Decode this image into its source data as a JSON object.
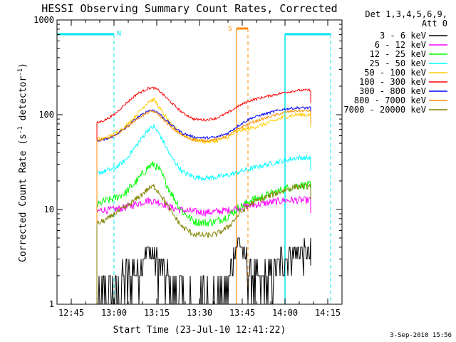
{
  "chart_data": {
    "type": "line",
    "title": "HESSI Observing Summary Count Rates, Corrected",
    "xlabel": "Start Time (23-Jul-10 12:41:22)",
    "ylabel_prefix": "Corrected Count Rate (s",
    "ylabel_mid": " detector",
    "ylabel_suffix": ")",
    "ylabel_exp": "-1",
    "yscale": "log",
    "xlim": [
      "12:40",
      "14:20"
    ],
    "ylim": [
      1,
      1000
    ],
    "x_ticks": [
      "12:45",
      "13:00",
      "13:15",
      "13:30",
      "13:45",
      "14:00",
      "14:15"
    ],
    "y_tick_labels": [
      "1",
      "10",
      "100",
      "1000"
    ],
    "legend_header": [
      "Det 1,3,4,5,6,9,",
      "Att 0"
    ],
    "legend_position": "right",
    "timestamp": "3-Sep-2010 15:56",
    "annotations": {
      "night_label": "N",
      "saa_label": "S",
      "night_intervals": [
        [
          "12:40",
          "13:00"
        ],
        [
          "14:00",
          "14:16"
        ]
      ],
      "saa_interval": [
        "13:43",
        "13:47"
      ],
      "night_color": "#00e5ee",
      "saa_color": "#ff8c00"
    },
    "data_start": "12:54",
    "data_end": "14:09",
    "series": [
      {
        "name": "3 - 6 keV",
        "color": "#000000",
        "x": [
          "12:54",
          "12:58",
          "13:00",
          "13:04",
          "13:08",
          "13:12",
          "13:16",
          "13:20",
          "13:24",
          "13:30",
          "13:36",
          "13:40",
          "13:42",
          "13:44",
          "13:46",
          "13:48",
          "13:52",
          "13:56",
          "14:00",
          "14:04",
          "14:08"
        ],
        "y": [
          1,
          1,
          1,
          1.8,
          2.3,
          3.8,
          2.3,
          1.5,
          1,
          1,
          1,
          1.5,
          3.5,
          4.5,
          3,
          2,
          1.5,
          2.2,
          3.2,
          3.5,
          3.5
        ]
      },
      {
        "name": "6 - 12 keV",
        "color": "#ff00ff",
        "x": [
          "12:54",
          "12:56",
          "12:58",
          "13:00",
          "13:04",
          "13:08",
          "13:12",
          "13:16",
          "13:20",
          "13:24",
          "13:28",
          "13:32",
          "13:36",
          "13:40",
          "13:44",
          "13:48",
          "13:52",
          "13:56",
          "14:00",
          "14:04",
          "14:08"
        ],
        "y": [
          9.5,
          10,
          9.8,
          10,
          10.5,
          11.5,
          12.5,
          12,
          10.5,
          9.8,
          9.5,
          9.3,
          9.5,
          9.8,
          10.5,
          11,
          11.5,
          12,
          12.5,
          12.5,
          12.5
        ]
      },
      {
        "name": "12 - 25 keV",
        "color": "#00ff00",
        "x": [
          "12:54",
          "12:56",
          "12:58",
          "13:00",
          "13:04",
          "13:08",
          "13:12",
          "13:14",
          "13:16",
          "13:20",
          "13:24",
          "13:28",
          "13:32",
          "13:36",
          "13:40",
          "13:44",
          "13:48",
          "13:52",
          "13:56",
          "14:00",
          "14:04",
          "14:08"
        ],
        "y": [
          11,
          12,
          12.5,
          13,
          15,
          20,
          28,
          30,
          26,
          15,
          9.5,
          7.5,
          7.2,
          7.5,
          8.5,
          10.5,
          12.5,
          13.5,
          15,
          16.5,
          18,
          18
        ]
      },
      {
        "name": "25 - 50 keV",
        "color": "#00ffff",
        "x": [
          "12:54",
          "12:56",
          "12:58",
          "13:00",
          "13:04",
          "13:08",
          "13:12",
          "13:14",
          "13:16",
          "13:20",
          "13:24",
          "13:28",
          "13:32",
          "13:36",
          "13:40",
          "13:44",
          "13:48",
          "13:52",
          "13:56",
          "14:00",
          "14:04",
          "14:08"
        ],
        "y": [
          24,
          25,
          26,
          27,
          33,
          48,
          70,
          75,
          62,
          36,
          25,
          22,
          21.5,
          22,
          23,
          25,
          27,
          29,
          31,
          33,
          35,
          35
        ]
      },
      {
        "name": "50 - 100 keV",
        "color": "#ffcc00",
        "x": [
          "12:54",
          "12:56",
          "12:58",
          "13:00",
          "13:04",
          "13:08",
          "13:12",
          "13:14",
          "13:16",
          "13:20",
          "13:24",
          "13:28",
          "13:32",
          "13:36",
          "13:40",
          "13:44",
          "13:48",
          "13:52",
          "13:56",
          "14:00",
          "14:04",
          "14:08"
        ],
        "y": [
          55,
          56,
          58,
          62,
          75,
          100,
          138,
          145,
          118,
          78,
          62,
          55,
          52,
          53,
          58,
          68,
          72,
          78,
          86,
          95,
          100,
          100
        ]
      },
      {
        "name": "100 - 300 keV",
        "color": "#ff0000",
        "x": [
          "12:54",
          "12:56",
          "12:58",
          "13:00",
          "13:04",
          "13:08",
          "13:12",
          "13:14",
          "13:16",
          "13:20",
          "13:24",
          "13:28",
          "13:32",
          "13:36",
          "13:40",
          "13:44",
          "13:48",
          "13:52",
          "13:56",
          "14:00",
          "14:04",
          "14:08"
        ],
        "y": [
          82,
          86,
          92,
          100,
          130,
          165,
          190,
          192,
          178,
          135,
          105,
          90,
          88,
          92,
          105,
          125,
          142,
          152,
          162,
          172,
          180,
          182
        ]
      },
      {
        "name": "300 - 800 keV",
        "color": "#0000ff",
        "x": [
          "12:54",
          "12:56",
          "12:58",
          "13:00",
          "13:04",
          "13:08",
          "13:12",
          "13:14",
          "13:16",
          "13:20",
          "13:24",
          "13:28",
          "13:32",
          "13:36",
          "13:40",
          "13:44",
          "13:48",
          "13:52",
          "13:56",
          "14:00",
          "14:04",
          "14:08"
        ],
        "y": [
          52,
          54,
          56,
          60,
          72,
          92,
          110,
          112,
          102,
          78,
          64,
          58,
          57,
          58,
          64,
          78,
          92,
          100,
          108,
          115,
          118,
          118
        ]
      },
      {
        "name": "800 - 7000 keV",
        "color": "#ff8c00",
        "x": [
          "12:54",
          "12:56",
          "12:58",
          "13:00",
          "13:04",
          "13:08",
          "13:12",
          "13:14",
          "13:16",
          "13:20",
          "13:24",
          "13:28",
          "13:32",
          "13:36",
          "13:40",
          "13:44",
          "13:48",
          "13:52",
          "13:56",
          "14:00",
          "14:04",
          "14:08"
        ],
        "y": [
          53,
          55,
          57,
          60,
          72,
          90,
          106,
          108,
          98,
          74,
          60,
          54,
          53,
          55,
          60,
          72,
          82,
          90,
          98,
          106,
          110,
          110
        ]
      },
      {
        "name": "7000 - 20000 keV",
        "color": "#808000",
        "x": [
          "12:54",
          "12:56",
          "12:58",
          "13:00",
          "13:04",
          "13:08",
          "13:12",
          "13:14",
          "13:16",
          "13:20",
          "13:24",
          "13:28",
          "13:32",
          "13:36",
          "13:40",
          "13:44",
          "13:48",
          "13:52",
          "13:56",
          "14:00",
          "14:04",
          "14:08"
        ],
        "y": [
          7,
          7.5,
          8,
          9,
          10.5,
          13,
          16.5,
          17.5,
          15,
          9.5,
          6.5,
          5.5,
          5.3,
          5.5,
          6.5,
          9,
          11.5,
          13,
          14.5,
          16,
          17.5,
          17.5
        ]
      }
    ]
  }
}
